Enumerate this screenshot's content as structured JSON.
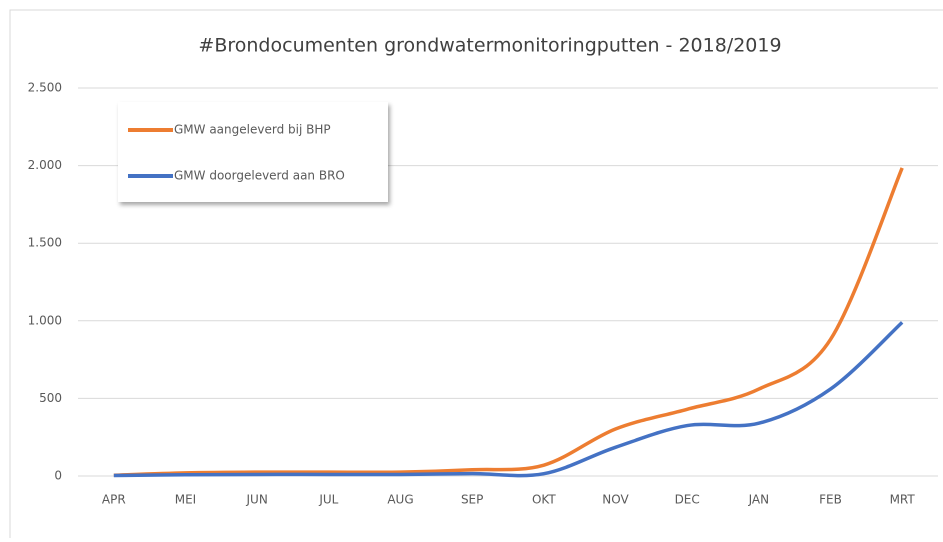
{
  "chart_data": {
    "type": "line",
    "title": "#Brondocumenten grondwatermonitoringputten - 2018/2019",
    "categories": [
      "APR",
      "MEI",
      "JUN",
      "JUL",
      "AUG",
      "SEP",
      "OKT",
      "NOV",
      "DEC",
      "JAN",
      "FEB",
      "MRT"
    ],
    "series": [
      {
        "name": "GMW aangeleverd bij BHP",
        "color": "#ed7d31",
        "values": [
          5,
          20,
          25,
          25,
          25,
          40,
          70,
          303,
          430,
          560,
          880,
          1985
        ]
      },
      {
        "name": "GMW doorgeleverd aan BRO",
        "color": "#4472c4",
        "values": [
          3,
          8,
          10,
          10,
          10,
          15,
          15,
          185,
          325,
          340,
          560,
          990
        ]
      }
    ],
    "ylim": [
      0,
      2500
    ],
    "yticks": [
      0,
      500,
      {
        "value": 1000,
        "label": "1.000"
      },
      {
        "value": 1500,
        "label": "1.500"
      },
      {
        "value": 2000,
        "label": "2.000"
      },
      {
        "value": 2500,
        "label": "2.500"
      }
    ],
    "grid": true,
    "smooth": true,
    "legend": "top-left"
  }
}
